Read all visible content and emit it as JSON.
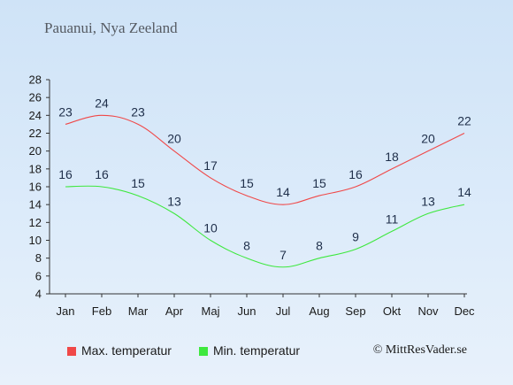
{
  "chart_data": {
    "type": "line",
    "title": "Pauanui, Nya Zeeland",
    "categories": [
      "Jan",
      "Feb",
      "Mar",
      "Apr",
      "Maj",
      "Jun",
      "Jul",
      "Aug",
      "Sep",
      "Okt",
      "Nov",
      "Dec"
    ],
    "series": [
      {
        "name": "Max. temperatur",
        "values": [
          23,
          24,
          23,
          20,
          17,
          15,
          14,
          15,
          16,
          18,
          20,
          22
        ],
        "color": "#f04848"
      },
      {
        "name": "Min. temperatur",
        "values": [
          16,
          16,
          15,
          13,
          10,
          8,
          7,
          8,
          9,
          11,
          13,
          14
        ],
        "color": "#3ee83e"
      }
    ],
    "y_ticks": [
      4,
      6,
      8,
      10,
      12,
      14,
      16,
      18,
      20,
      22,
      24,
      26,
      28
    ],
    "ylim": [
      4,
      28
    ],
    "grid": false,
    "legend": "bottom"
  },
  "credit": "© MittResVader.se"
}
